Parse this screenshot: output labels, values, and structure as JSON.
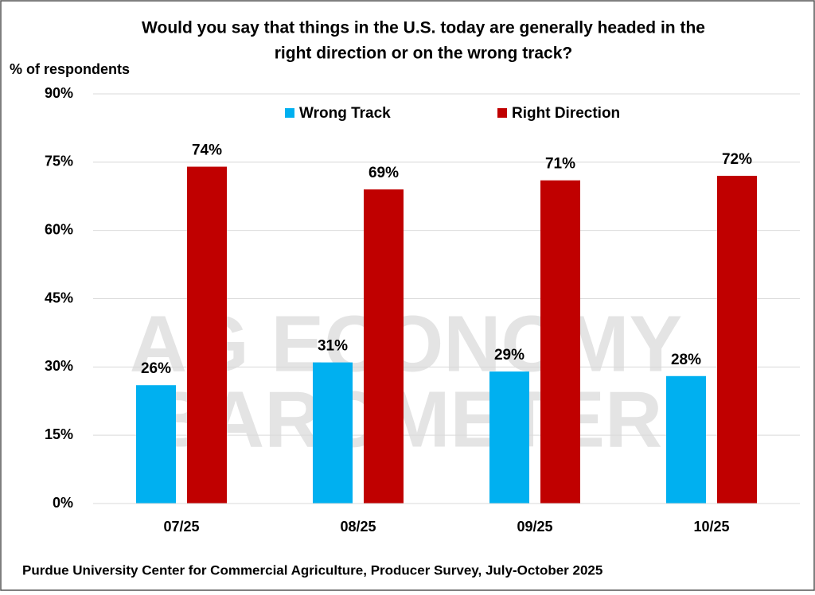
{
  "chart_data": {
    "type": "bar",
    "title": [
      "Would you say that things in the U.S. today are generally headed in the",
      "right direction or on the wrong track?"
    ],
    "y_label": "% of respondents",
    "source": "Purdue University Center for Commercial Agriculture, Producer Survey, July-October 2025",
    "watermark": [
      "AG ECONOMY",
      "BAROMETER"
    ],
    "categories": [
      "07/25",
      "08/25",
      "09/25",
      "10/25"
    ],
    "series": [
      {
        "name": "Wrong Track",
        "color": "#00b0f0",
        "values": [
          26,
          31,
          29,
          28
        ],
        "value_labels": [
          "26%",
          "31%",
          "29%",
          "28%"
        ]
      },
      {
        "name": "Right Direction",
        "color": "#c00000",
        "values": [
          74,
          69,
          71,
          72
        ],
        "value_labels": [
          "74%",
          "69%",
          "71%",
          "72%"
        ]
      }
    ],
    "ylim": [
      0,
      90
    ],
    "yticks": [
      {
        "value": 0,
        "label": "0%"
      },
      {
        "value": 15,
        "label": "15%"
      },
      {
        "value": 30,
        "label": "30%"
      },
      {
        "value": 45,
        "label": "45%"
      },
      {
        "value": 60,
        "label": "60%"
      },
      {
        "value": 75,
        "label": "75%"
      },
      {
        "value": 90,
        "label": "90%"
      }
    ],
    "grid": true
  }
}
